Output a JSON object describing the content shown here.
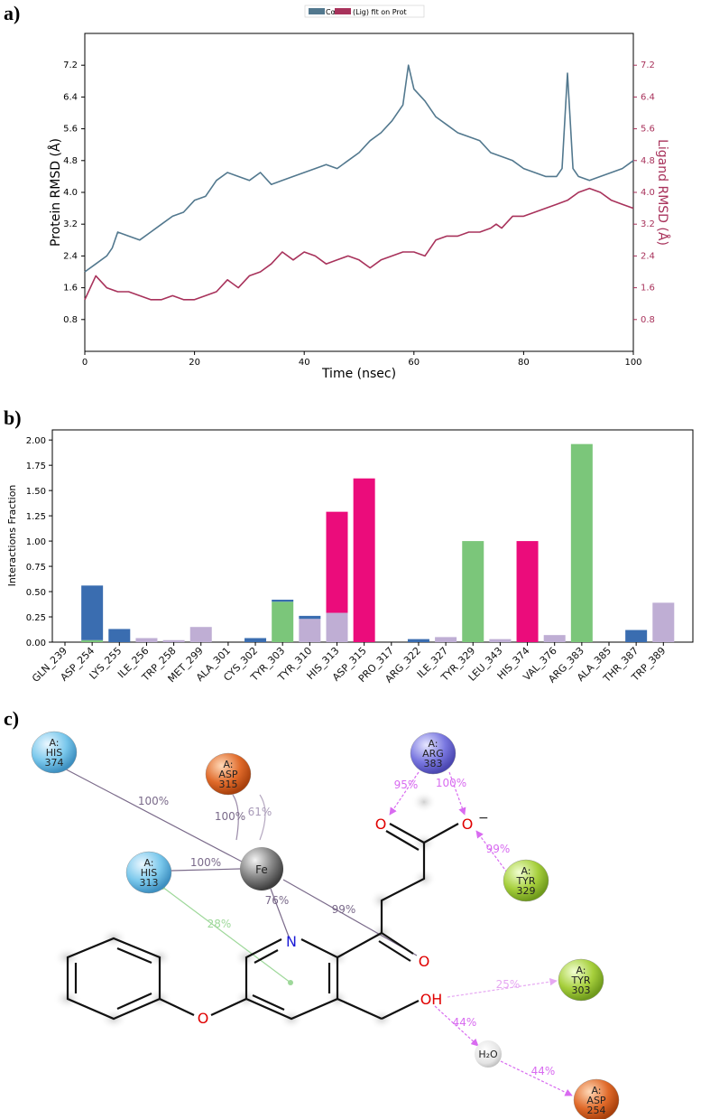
{
  "panels": {
    "a": "a)",
    "b": "b)",
    "c": "c)"
  },
  "chart_data": [
    {
      "type": "line",
      "legend": {
        "placement": "top-center",
        "entries": [
          "Cα",
          "(Lig) fit on Prot"
        ]
      },
      "xlabel": "Time (nsec)",
      "ylabel": "Protein RMSD (Å)",
      "ylabel_right": "Ligand RMSD (Å)",
      "xlim": [
        0,
        100
      ],
      "ylim": [
        0.0,
        8.0
      ],
      "x_ticks": [
        0,
        20,
        40,
        60,
        80,
        100
      ],
      "y_ticks": [
        0.8,
        1.6,
        2.4,
        3.2,
        4.0,
        4.8,
        5.6,
        6.4,
        7.2
      ],
      "colors": {
        "protein": "#52788e",
        "ligand": "#a8325b"
      },
      "series": [
        {
          "name": "Cα",
          "x": [
            0,
            2,
            4,
            5,
            6,
            8,
            10,
            12,
            14,
            16,
            18,
            20,
            22,
            24,
            26,
            28,
            30,
            32,
            34,
            36,
            38,
            40,
            42,
            44,
            46,
            48,
            50,
            52,
            54,
            56,
            58,
            59,
            60,
            62,
            64,
            66,
            68,
            70,
            72,
            74,
            76,
            78,
            80,
            82,
            84,
            86,
            87,
            88,
            89,
            90,
            92,
            94,
            96,
            98,
            100
          ],
          "values": [
            2.0,
            2.2,
            2.4,
            2.6,
            3.0,
            2.9,
            2.8,
            3.0,
            3.2,
            3.4,
            3.5,
            3.8,
            3.9,
            4.3,
            4.5,
            4.4,
            4.3,
            4.5,
            4.2,
            4.3,
            4.4,
            4.5,
            4.6,
            4.7,
            4.6,
            4.8,
            5.0,
            5.3,
            5.5,
            5.8,
            6.2,
            7.2,
            6.6,
            6.3,
            5.9,
            5.7,
            5.5,
            5.4,
            5.3,
            5.0,
            4.9,
            4.8,
            4.6,
            4.5,
            4.4,
            4.4,
            4.6,
            7.0,
            4.6,
            4.4,
            4.3,
            4.4,
            4.5,
            4.6,
            4.8
          ]
        },
        {
          "name": "(Lig) fit on Prot",
          "x": [
            0,
            2,
            4,
            6,
            8,
            10,
            12,
            14,
            16,
            18,
            20,
            22,
            24,
            26,
            28,
            30,
            32,
            34,
            36,
            38,
            40,
            42,
            44,
            46,
            48,
            50,
            52,
            54,
            56,
            58,
            60,
            62,
            64,
            66,
            68,
            70,
            72,
            74,
            75,
            76,
            78,
            80,
            82,
            84,
            86,
            88,
            90,
            92,
            94,
            96,
            98,
            100
          ],
          "values": [
            1.3,
            1.9,
            1.6,
            1.5,
            1.5,
            1.4,
            1.3,
            1.3,
            1.4,
            1.3,
            1.3,
            1.4,
            1.5,
            1.8,
            1.6,
            1.9,
            2.0,
            2.2,
            2.5,
            2.3,
            2.5,
            2.4,
            2.2,
            2.3,
            2.4,
            2.3,
            2.1,
            2.3,
            2.4,
            2.5,
            2.5,
            2.4,
            2.8,
            2.9,
            2.9,
            3.0,
            3.0,
            3.1,
            3.2,
            3.1,
            3.4,
            3.4,
            3.5,
            3.6,
            3.7,
            3.8,
            4.0,
            4.1,
            4.0,
            3.8,
            3.7,
            3.6
          ]
        }
      ]
    },
    {
      "type": "bar",
      "ylabel": "Interactions Fraction",
      "ylim": [
        0,
        2.1
      ],
      "y_ticks": [
        0.0,
        0.25,
        0.5,
        0.75,
        1.0,
        1.25,
        1.5,
        1.75,
        2.0
      ],
      "y_tick_labels": [
        "0.00",
        "0.25",
        "0.50",
        "0.75",
        "1.00",
        "1.25",
        "1.50",
        "1.75",
        "2.00"
      ],
      "categories": [
        "GLN_239",
        "ASP_254",
        "LYS_255",
        "ILE_256",
        "TRP_258",
        "MET_299",
        "ALA_301",
        "CYS_302",
        "TYR_303",
        "TYR_310",
        "HIS_313",
        "ASP_315",
        "PRO_317",
        "ARG_322",
        "ILE_327",
        "TYR_329",
        "LEU_343",
        "HIS_374",
        "VAL_376",
        "ARG_383",
        "ALA_385",
        "THR_387",
        "TRP_389"
      ],
      "stacked": true,
      "series": [
        {
          "color": "#7bc67a",
          "values": [
            0,
            0.02,
            0,
            0,
            0,
            0,
            0,
            0,
            0.4,
            0,
            0,
            0,
            0,
            0,
            0,
            1.0,
            0,
            0,
            0,
            1.96,
            0,
            0,
            0
          ]
        },
        {
          "color": "#bfaed4",
          "values": [
            0,
            0,
            0,
            0.04,
            0.02,
            0.15,
            0,
            0,
            0,
            0.23,
            0.29,
            0,
            0,
            0,
            0.05,
            0,
            0.03,
            0,
            0.07,
            0,
            0,
            0,
            0.39
          ]
        },
        {
          "color": "#eb0c7b",
          "values": [
            0,
            0,
            0,
            0,
            0,
            0,
            0,
            0,
            0,
            0,
            1.0,
            1.62,
            0,
            0,
            0,
            0,
            0,
            1.0,
            0,
            0,
            0,
            0,
            0
          ]
        },
        {
          "color": "#3a6db0",
          "values": [
            0,
            0.54,
            0.13,
            0,
            0,
            0,
            0,
            0.04,
            0.02,
            0.03,
            0,
            0,
            0,
            0.03,
            0,
            0,
            0,
            0,
            0,
            0,
            0,
            0.12,
            0
          ]
        }
      ]
    }
  ],
  "diagram": {
    "residues": [
      {
        "id": "his374",
        "line1": "A:",
        "line2": "HIS",
        "line3": "374",
        "color": "#7ac8ec"
      },
      {
        "id": "asp315",
        "line1": "A:",
        "line2": "ASP",
        "line3": "315",
        "color": "#e06a2a"
      },
      {
        "id": "his313",
        "line1": "A:",
        "line2": "HIS",
        "line3": "313",
        "color": "#7ac8ec"
      },
      {
        "id": "arg383",
        "line1": "A:",
        "line2": "ARG",
        "line3": "383",
        "color": "#7a78e0"
      },
      {
        "id": "tyr329",
        "line1": "A:",
        "line2": "TYR",
        "line3": "329",
        "color": "#a6cf3c"
      },
      {
        "id": "tyr303",
        "line1": "A:",
        "line2": "TYR",
        "line3": "303",
        "color": "#a6cf3c"
      },
      {
        "id": "asp254",
        "line1": "A:",
        "line2": "ASP",
        "line3": "254",
        "color": "#e06a2a"
      }
    ],
    "fe_label": "Fe",
    "water_label": "H₂O",
    "atoms": {
      "o_left": "O",
      "o_right": "O",
      "o_minus": "−",
      "n": "N",
      "o_ketone": "O",
      "oh": "OH",
      "o_ether": "O"
    },
    "percents": {
      "his374_fe": "100%",
      "asp315_a": "100%",
      "asp315_b": "61%",
      "his313_fe": "100%",
      "n_fe": "76%",
      "ketone_fe": "99%",
      "his313_ring": "28%",
      "arg_o1": "95%",
      "arg_o2": "100%",
      "tyr329_o": "99%",
      "oh_tyr303": "25%",
      "oh_water": "44%",
      "water_asp254": "44%"
    }
  }
}
